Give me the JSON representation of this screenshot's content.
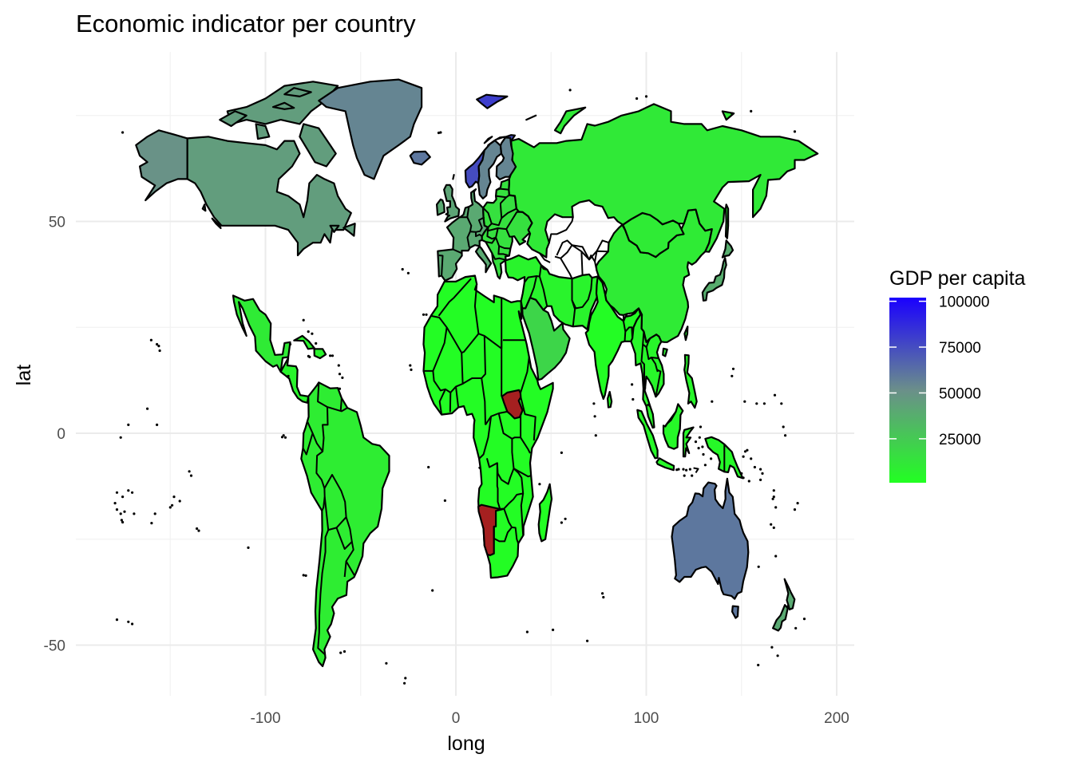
{
  "chart_data": {
    "type": "map",
    "title": "Economic indicator per country",
    "xlabel": "long",
    "ylabel": "lat",
    "xlim": [
      -188,
      208
    ],
    "ylim": [
      -62,
      90
    ],
    "x_ticks": [
      -100,
      0,
      100,
      200
    ],
    "y_ticks": [
      -50,
      0,
      50
    ],
    "grid": true,
    "legend": {
      "title": "GDP per capita",
      "placement": "right",
      "breaks": [
        100000,
        75000,
        50000,
        25000
      ],
      "range": [
        1000,
        102000
      ],
      "low_color": "#22ff22",
      "mid_color": "#6b8f8a",
      "high_color": "#1a00ff"
    },
    "missing_color": "#a52020",
    "regions": [
      {
        "name": "Canada",
        "value": 45000
      },
      {
        "name": "Alaska",
        "value": 50000
      },
      {
        "name": "Greenland",
        "value": 55000
      },
      {
        "name": "Mexico",
        "value": 10000
      },
      {
        "name": "Central America",
        "value": 6000
      },
      {
        "name": "South America",
        "value": 9000
      },
      {
        "name": "Africa",
        "value": 2000
      },
      {
        "name": "Namibia",
        "value": null
      },
      {
        "name": "South Sudan",
        "value": null
      },
      {
        "name": "Arabian Peninsula",
        "value": 20000
      },
      {
        "name": "Western Europe",
        "value": 40000
      },
      {
        "name": "Eastern Europe",
        "value": 15000
      },
      {
        "name": "Norway",
        "value": 75000
      },
      {
        "name": "Sweden",
        "value": 55000
      },
      {
        "name": "Russia",
        "value": 11000
      },
      {
        "name": "Middle East",
        "value": 6000
      },
      {
        "name": "China",
        "value": 10000
      },
      {
        "name": "India",
        "value": 2000
      },
      {
        "name": "Southeast Asia",
        "value": 5000
      },
      {
        "name": "Japan",
        "value": 38000
      },
      {
        "name": "Indonesia",
        "value": 4000
      },
      {
        "name": "Australia",
        "value": 60000
      },
      {
        "name": "New Zealand",
        "value": 40000
      },
      {
        "name": "Madagascar",
        "value": 1500
      },
      {
        "name": "Iceland",
        "value": 60000
      },
      {
        "name": "Svalbard",
        "value": 80000
      },
      {
        "name": "United Kingdom",
        "value": 42000
      }
    ]
  }
}
